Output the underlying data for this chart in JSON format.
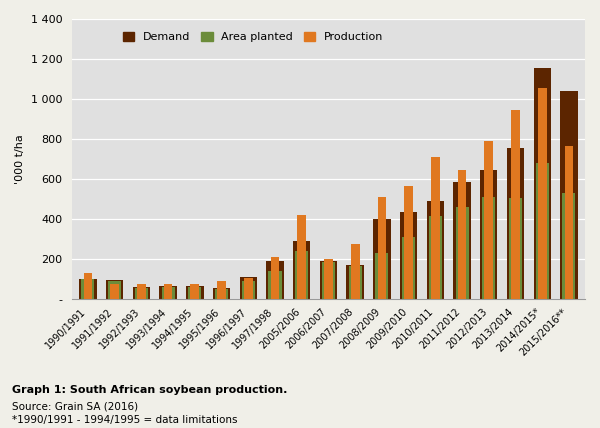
{
  "categories": [
    "1990/1991",
    "1991/1992",
    "1992/1993",
    "1993/1994",
    "1994/1995",
    "1995/1996",
    "1996/1997",
    "1997/1998",
    "2005/2006",
    "2006/2007",
    "2007/2008",
    "2008/2009",
    "2009/2010",
    "2010/2011",
    "2011/2012",
    "2012/2013",
    "2013/2014",
    "2014/2015*",
    "2015/2016**"
  ],
  "demand": [
    100,
    95,
    60,
    65,
    65,
    55,
    110,
    190,
    290,
    190,
    170,
    400,
    435,
    490,
    585,
    645,
    755,
    1155,
    1040
  ],
  "area_planted": [
    100,
    90,
    55,
    60,
    60,
    50,
    90,
    140,
    240,
    185,
    165,
    230,
    310,
    415,
    460,
    510,
    505,
    680,
    530
  ],
  "production": [
    130,
    75,
    75,
    75,
    75,
    90,
    105,
    210,
    420,
    200,
    275,
    510,
    565,
    710,
    645,
    790,
    945,
    1055,
    765
  ],
  "demand_color": "#5C2500",
  "area_planted_color": "#6B8C3A",
  "production_color": "#E07820",
  "background_color": "#E0E0E0",
  "fig_background_color": "#F0EFE8",
  "ylabel": "'000 t/ha",
  "ylim": [
    0,
    1400
  ],
  "yticks": [
    0,
    200,
    400,
    600,
    800,
    1000,
    1200,
    1400
  ],
  "ytick_labels": [
    "-",
    "200",
    "400",
    "600",
    "800",
    "1 000",
    "1 200",
    "1 400"
  ],
  "legend_labels": [
    "Demand",
    "Area planted",
    "Production"
  ],
  "caption_title": "Graph 1: South African soybean production.",
  "caption_source": "Source: Grain SA (2016)",
  "caption_note": "*1990/1991 - 1994/1995 = data limitations"
}
